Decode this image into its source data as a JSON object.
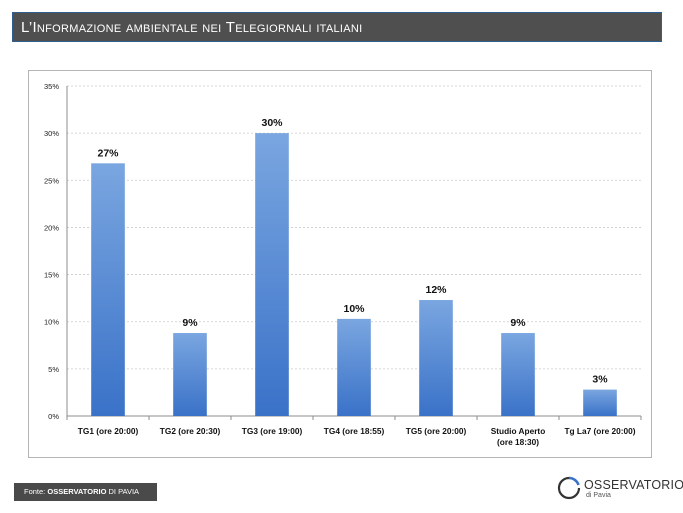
{
  "title": "L’Informazione ambientale nei Telegiornali italiani",
  "footer": {
    "prefix": "Fonte: ",
    "bold": "OSSERVATORIO",
    "rest": " DI PAVIA"
  },
  "logo": {
    "name": "OSSERVATORIO",
    "sub": "di Pavia"
  },
  "colors": {
    "bar_top": "#7aa6e0",
    "bar_bottom": "#3a72c8",
    "grid": "#c9c9c9",
    "title_bg": "#4f4f4f",
    "logo_accent": "#3a72c8"
  },
  "chart_data": {
    "type": "bar",
    "categories": [
      [
        "TG1 (ore 20:00)"
      ],
      [
        "TG2 (ore 20:30)"
      ],
      [
        "TG3 (ore 19:00)"
      ],
      [
        "TG4 (ore 18:55)"
      ],
      [
        "TG5 (ore 20:00)"
      ],
      [
        "Studio Aperto",
        "(ore 18:30)"
      ],
      [
        "Tg La7 (ore 20:00)"
      ]
    ],
    "values": [
      26.8,
      8.8,
      30.0,
      10.3,
      12.3,
      8.8,
      2.8
    ],
    "data_labels": [
      "27%",
      "9%",
      "30%",
      "10%",
      "12%",
      "9%",
      "3%"
    ],
    "ylim": [
      0,
      35
    ],
    "yticks": [
      0,
      5,
      10,
      15,
      20,
      25,
      30,
      35
    ],
    "ytick_labels": [
      "0%",
      "5%",
      "10%",
      "15%",
      "20%",
      "25%",
      "30%",
      "35%"
    ],
    "grid": true,
    "xlabel": "",
    "ylabel": ""
  }
}
